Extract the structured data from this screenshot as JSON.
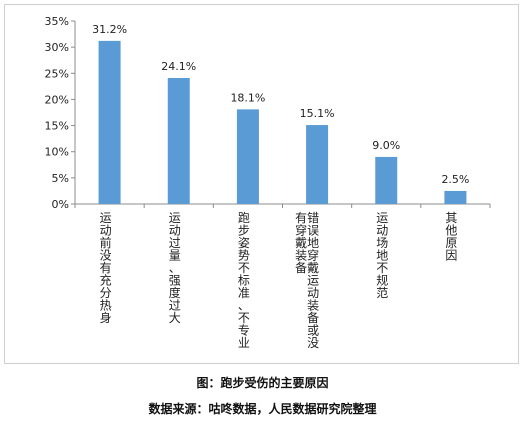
{
  "chart_data": {
    "type": "bar",
    "categories": [
      "运动前没有充分热身",
      "运动过量、强度过大",
      "跑步姿势不标准、不专业",
      "错误地穿戴运动装备或没有穿戴装备",
      "运动场地不规范",
      "其他原因"
    ],
    "values": [
      31.2,
      24.1,
      18.1,
      15.1,
      9.0,
      2.5
    ],
    "data_labels": [
      "31.2%",
      "24.1%",
      "18.1%",
      "15.1%",
      "9.0%",
      "2.5%"
    ],
    "ylim": [
      0,
      35
    ],
    "yticks": [
      "0%",
      "5%",
      "10%",
      "15%",
      "20%",
      "25%",
      "30%",
      "35%"
    ],
    "bar_color": "#5b9bd5",
    "grid": false
  },
  "caption": "图：跑步受伤的主要原因",
  "source": "数据来源：咕咚数据，人民数据研究院整理"
}
